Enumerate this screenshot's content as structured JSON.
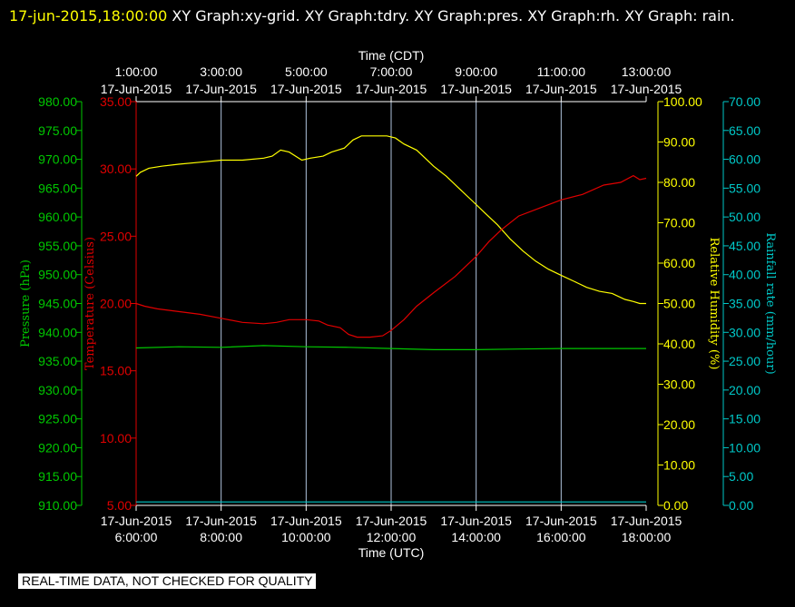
{
  "header": {
    "datetime": "17-jun-2015,18:00:00",
    "titles": "XY Graph:xy-grid.  XY Graph:tdry.  XY Graph:pres.  XY Graph:rh.  XY Graph: rain."
  },
  "footer": {
    "notice": "REAL-TIME DATA, NOT CHECKED FOR QUALITY"
  },
  "chart_data": {
    "type": "line",
    "grid": true,
    "colors": {
      "background": "#000000",
      "grid": "#b0c4de",
      "frame": "#ffffff",
      "pressure": "#00c800",
      "temperature": "#e00000",
      "humidity": "#ffff00",
      "rain": "#00c8c8"
    },
    "x_top": {
      "label": "Time (CDT)",
      "ticks": [
        [
          "1:00:00",
          "17-Jun-2015"
        ],
        [
          "3:00:00",
          "17-Jun-2015"
        ],
        [
          "5:00:00",
          "17-Jun-2015"
        ],
        [
          "7:00:00",
          "17-Jun-2015"
        ],
        [
          "9:00:00",
          "17-Jun-2015"
        ],
        [
          "11:00:00",
          "17-Jun-2015"
        ],
        [
          "13:00:00",
          "17-Jun-2015"
        ]
      ]
    },
    "x_bottom": {
      "label": "Time (UTC)",
      "range": [
        6,
        18
      ],
      "ticks": [
        [
          "17-Jun-2015",
          "6:00:00"
        ],
        [
          "17-Jun-2015",
          "8:00:00"
        ],
        [
          "17-Jun-2015",
          "10:00:00"
        ],
        [
          "17-Jun-2015",
          "12:00:00"
        ],
        [
          "17-Jun-2015",
          "14:00:00"
        ],
        [
          "17-Jun-2015",
          "16:00:00"
        ],
        [
          "17-Jun-2015",
          "18:00:00"
        ]
      ]
    },
    "axes": [
      {
        "key": "pressure",
        "label": "Pressure (hPa)",
        "range": [
          910,
          980
        ],
        "ticks": [
          "910.00",
          "915.00",
          "920.00",
          "925.00",
          "930.00",
          "935.00",
          "940.00",
          "945.00",
          "950.00",
          "955.00",
          "960.00",
          "965.00",
          "970.00",
          "975.00",
          "980.00"
        ]
      },
      {
        "key": "temperature",
        "label": "Temperature (Celsius)",
        "range": [
          5,
          35
        ],
        "ticks": [
          "5.00",
          "10.00",
          "15.00",
          "20.00",
          "25.00",
          "30.00",
          "35.00"
        ]
      },
      {
        "key": "humidity",
        "label": "Relative Humidity (%)",
        "range": [
          0,
          100
        ],
        "ticks": [
          "0.00",
          "10.00",
          "20.00",
          "30.00",
          "40.00",
          "50.00",
          "60.00",
          "70.00",
          "80.00",
          "90.00",
          "100.00"
        ]
      },
      {
        "key": "rain",
        "label": "Rainfall rate (mm/hour)",
        "range": [
          0,
          70
        ],
        "ticks": [
          "0.00",
          "5.00",
          "10.00",
          "15.00",
          "20.00",
          "25.00",
          "30.00",
          "35.00",
          "40.00",
          "45.00",
          "50.00",
          "55.00",
          "60.00",
          "65.00",
          "70.00"
        ]
      }
    ],
    "series": [
      {
        "axis": "humidity",
        "x": [
          6.0,
          6.1,
          6.3,
          6.6,
          7.0,
          7.5,
          8.0,
          8.5,
          9.0,
          9.2,
          9.4,
          9.6,
          9.9,
          10.1,
          10.4,
          10.6,
          10.9,
          11.1,
          11.3,
          11.6,
          11.9,
          12.1,
          12.3,
          12.6,
          12.8,
          13.0,
          13.3,
          13.6,
          13.9,
          14.2,
          14.5,
          14.8,
          15.1,
          15.4,
          15.7,
          16.0,
          16.3,
          16.6,
          16.9,
          17.2,
          17.5,
          17.7,
          17.85,
          18.0
        ],
        "values": [
          81.5,
          82.5,
          83.5,
          84,
          84.5,
          85,
          85.5,
          85.5,
          86,
          86.5,
          88,
          87.5,
          85.5,
          86,
          86.5,
          87.5,
          88.5,
          90.5,
          91.5,
          91.5,
          91.5,
          91,
          89.5,
          88,
          86,
          84,
          81.5,
          78.5,
          75.5,
          72.5,
          69.5,
          66,
          63,
          60.5,
          58.5,
          57,
          55.5,
          54,
          53,
          52.5,
          51,
          50.5,
          50,
          50
        ]
      },
      {
        "axis": "temperature",
        "x": [
          6.0,
          6.2,
          6.5,
          7.0,
          7.5,
          8.0,
          8.5,
          9.0,
          9.3,
          9.6,
          10.0,
          10.3,
          10.5,
          10.8,
          11.0,
          11.2,
          11.5,
          11.8,
          12.0,
          12.3,
          12.6,
          13.0,
          13.5,
          14.0,
          14.3,
          14.6,
          15.0,
          15.5,
          16.0,
          16.5,
          17.0,
          17.4,
          17.7,
          17.85,
          18.0
        ],
        "values": [
          20,
          19.8,
          19.6,
          19.4,
          19.2,
          18.9,
          18.6,
          18.5,
          18.6,
          18.8,
          18.8,
          18.7,
          18.4,
          18.2,
          17.7,
          17.5,
          17.5,
          17.6,
          18.0,
          18.8,
          19.8,
          20.8,
          22.0,
          23.5,
          24.6,
          25.5,
          26.5,
          27.1,
          27.7,
          28.1,
          28.8,
          29.0,
          29.5,
          29.2,
          29.3
        ]
      },
      {
        "axis": "pressure",
        "x": [
          6.0,
          7.0,
          8.0,
          9.0,
          10.0,
          11.0,
          12.0,
          13.0,
          14.0,
          15.0,
          16.0,
          17.0,
          18.0
        ],
        "values": [
          937.3,
          937.5,
          937.4,
          937.7,
          937.5,
          937.4,
          937.2,
          937.0,
          937.0,
          937.1,
          937.2,
          937.2,
          937.2
        ]
      },
      {
        "axis": "rain",
        "x": [
          6.0,
          18.0
        ],
        "values": [
          0.6,
          0.6
        ]
      }
    ]
  }
}
